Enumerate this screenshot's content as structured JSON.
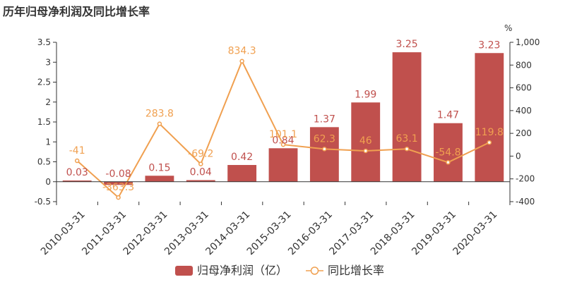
{
  "title": "历年归母净利润及同比增长率",
  "colors": {
    "bar": "#c0504d",
    "line": "#f0a050",
    "axis": "#333333",
    "text": "#333333"
  },
  "chart_data": {
    "type": "bar",
    "title": "历年归母净利润及同比增长率",
    "categories": [
      "2010-03-31",
      "2011-03-31",
      "2012-03-31",
      "2013-03-31",
      "2014-03-31",
      "2015-03-31",
      "2016-03-31",
      "2017-03-31",
      "2018-03-31",
      "2019-03-31",
      "2020-03-31"
    ],
    "series": [
      {
        "name": "归母净利润（亿）",
        "type": "bar",
        "axis": "left",
        "values": [
          0.03,
          -0.08,
          0.15,
          0.04,
          0.42,
          0.84,
          1.37,
          1.99,
          3.25,
          1.47,
          3.23
        ],
        "labels": [
          "0.03",
          "-0.08",
          "0.15",
          "0.04",
          "0.42",
          "0.84",
          "1.37",
          "1.99",
          "3.25",
          "1.47",
          "3.23"
        ]
      },
      {
        "name": "同比增长率",
        "type": "line",
        "axis": "right",
        "values": [
          -41,
          -363.3,
          283.8,
          -69.2,
          834.3,
          101.1,
          62.3,
          46,
          63.1,
          -54.8,
          119.8
        ],
        "labels": [
          "-41",
          "-363.3",
          "283.8",
          "-69.2",
          "834.3",
          "101.1",
          "62.3",
          "46",
          "63.1",
          "-54.8",
          "119.8"
        ]
      }
    ],
    "left_axis": {
      "ylim": [
        -0.5,
        3.5
      ],
      "ticks": [
        "-0.5",
        "0",
        "0.5",
        "1",
        "1.5",
        "2",
        "2.5",
        "3",
        "3.5"
      ],
      "tick_values": [
        -0.5,
        0,
        0.5,
        1,
        1.5,
        2,
        2.5,
        3,
        3.5
      ]
    },
    "right_axis": {
      "unit": "%",
      "ylim": [
        -400,
        1000
      ],
      "ticks": [
        "-400",
        "-200",
        "0",
        "200",
        "400",
        "600",
        "800",
        "1,000"
      ],
      "tick_values": [
        -400,
        -200,
        0,
        200,
        400,
        600,
        800,
        1000
      ]
    },
    "grid": false,
    "legend_position": "bottom-center"
  }
}
